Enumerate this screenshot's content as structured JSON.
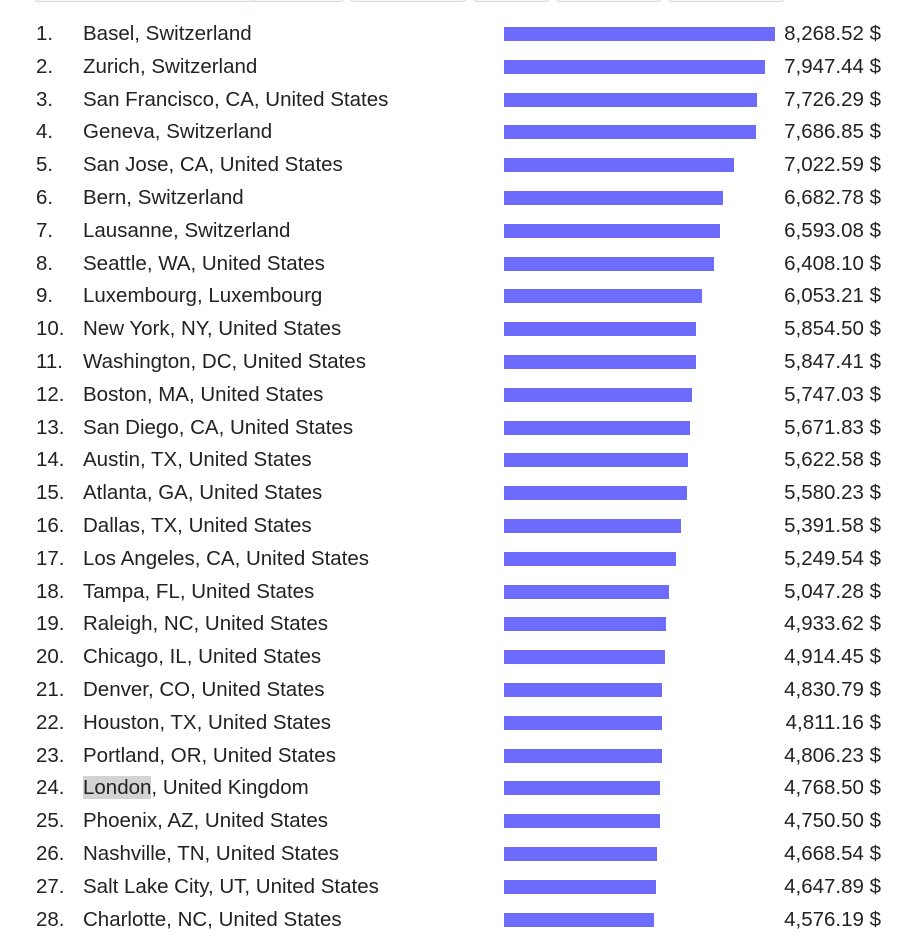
{
  "chart_data": {
    "type": "bar",
    "orientation": "horizontal",
    "unit": "$",
    "bar_color": "#6d6bfb",
    "highlight": {
      "rank": 24,
      "text": "London"
    },
    "xlim": [
      0,
      8268.52
    ],
    "rows": [
      {
        "rank": "1.",
        "city": "Basel, Switzerland",
        "value": 8268.52,
        "label": "8,268.52 $"
      },
      {
        "rank": "2.",
        "city": "Zurich, Switzerland",
        "value": 7947.44,
        "label": "7,947.44 $"
      },
      {
        "rank": "3.",
        "city": "San Francisco, CA, United States",
        "value": 7726.29,
        "label": "7,726.29 $"
      },
      {
        "rank": "4.",
        "city": "Geneva, Switzerland",
        "value": 7686.85,
        "label": "7,686.85 $"
      },
      {
        "rank": "5.",
        "city": "San Jose, CA, United States",
        "value": 7022.59,
        "label": "7,022.59 $"
      },
      {
        "rank": "6.",
        "city": "Bern, Switzerland",
        "value": 6682.78,
        "label": "6,682.78 $"
      },
      {
        "rank": "7.",
        "city": "Lausanne, Switzerland",
        "value": 6593.08,
        "label": "6,593.08 $"
      },
      {
        "rank": "8.",
        "city": "Seattle, WA, United States",
        "value": 6408.1,
        "label": "6,408.10 $"
      },
      {
        "rank": "9.",
        "city": "Luxembourg, Luxembourg",
        "value": 6053.21,
        "label": "6,053.21 $"
      },
      {
        "rank": "10.",
        "city": "New York, NY, United States",
        "value": 5854.5,
        "label": "5,854.50 $"
      },
      {
        "rank": "11.",
        "city": "Washington, DC, United States",
        "value": 5847.41,
        "label": "5,847.41 $"
      },
      {
        "rank": "12.",
        "city": "Boston, MA, United States",
        "value": 5747.03,
        "label": "5,747.03 $"
      },
      {
        "rank": "13.",
        "city": "San Diego, CA, United States",
        "value": 5671.83,
        "label": "5,671.83 $"
      },
      {
        "rank": "14.",
        "city": "Austin, TX, United States",
        "value": 5622.58,
        "label": "5,622.58 $"
      },
      {
        "rank": "15.",
        "city": "Atlanta, GA, United States",
        "value": 5580.23,
        "label": "5,580.23 $"
      },
      {
        "rank": "16.",
        "city": "Dallas, TX, United States",
        "value": 5391.58,
        "label": "5,391.58 $"
      },
      {
        "rank": "17.",
        "city": "Los Angeles, CA, United States",
        "value": 5249.54,
        "label": "5,249.54 $"
      },
      {
        "rank": "18.",
        "city": "Tampa, FL, United States",
        "value": 5047.28,
        "label": "5,047.28 $"
      },
      {
        "rank": "19.",
        "city": "Raleigh, NC, United States",
        "value": 4933.62,
        "label": "4,933.62 $"
      },
      {
        "rank": "20.",
        "city": "Chicago, IL, United States",
        "value": 4914.45,
        "label": "4,914.45 $"
      },
      {
        "rank": "21.",
        "city": "Denver, CO, United States",
        "value": 4830.79,
        "label": "4,830.79 $"
      },
      {
        "rank": "22.",
        "city": "Houston, TX, United States",
        "value": 4811.16,
        "label": "4,811.16 $"
      },
      {
        "rank": "23.",
        "city": "Portland, OR, United States",
        "value": 4806.23,
        "label": "4,806.23 $"
      },
      {
        "rank": "24.",
        "city": "London, United Kingdom",
        "value": 4768.5,
        "label": "4,768.50 $"
      },
      {
        "rank": "25.",
        "city": "Phoenix, AZ, United States",
        "value": 4750.5,
        "label": "4,750.50 $"
      },
      {
        "rank": "26.",
        "city": "Nashville, TN, United States",
        "value": 4668.54,
        "label": "4,668.54 $"
      },
      {
        "rank": "27.",
        "city": "Salt Lake City, UT, United States",
        "value": 4647.89,
        "label": "4,647.89 $"
      },
      {
        "rank": "28.",
        "city": "Charlotte, NC, United States",
        "value": 4576.19,
        "label": "4,576.19 $"
      }
    ]
  }
}
